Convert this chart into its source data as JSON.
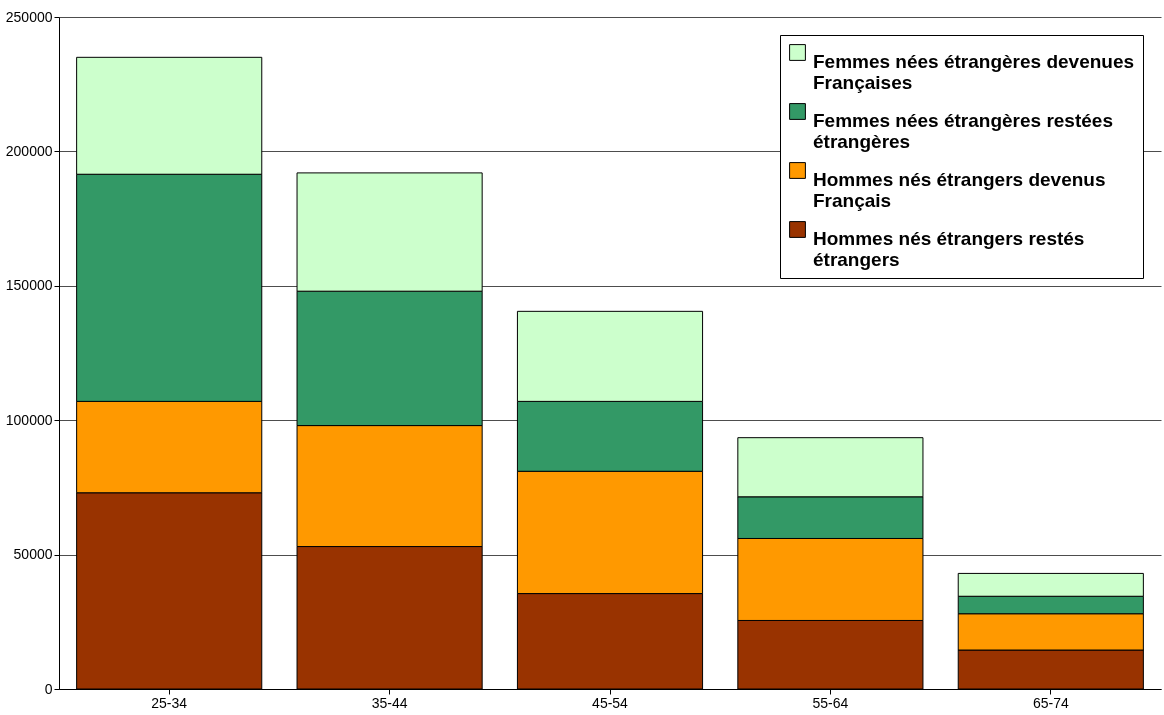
{
  "chart_data": {
    "type": "bar",
    "stacked": true,
    "categories": [
      "25-34",
      "35-44",
      "45-54",
      "55-64",
      "65-74"
    ],
    "series": [
      {
        "name": "Hommes nés étrangers restés étrangers",
        "color": "#993300",
        "values": [
          73000,
          53000,
          35500,
          25500,
          14500
        ]
      },
      {
        "name": "Hommes nés étrangers devenus Français",
        "color": "#ff9900",
        "values": [
          34000,
          45000,
          45500,
          30500,
          13500
        ]
      },
      {
        "name": "Femmes nées étrangères restées étrangères",
        "color": "#339966",
        "values": [
          84500,
          50000,
          26000,
          15500,
          6500
        ]
      },
      {
        "name": "Femmes nées étrangères devenues Françaises",
        "color": "#ccffcc",
        "values": [
          43500,
          44000,
          33500,
          22000,
          8500
        ]
      }
    ],
    "ylim": [
      0,
      250000
    ],
    "yticks": [
      0,
      50000,
      100000,
      150000,
      200000,
      250000
    ],
    "grid": "y",
    "legend": "top right"
  }
}
